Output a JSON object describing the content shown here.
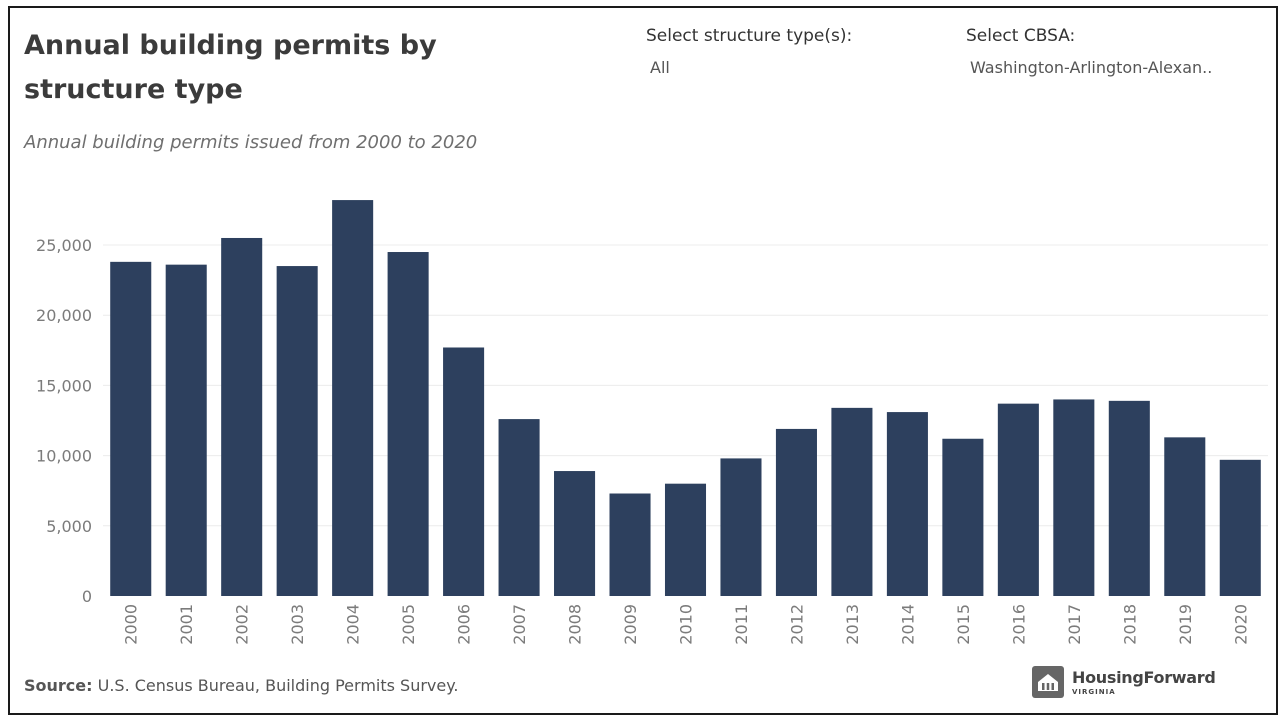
{
  "header": {
    "title": "Annual building permits by structure type",
    "subtitle": "Annual building permits issued from 2000 to 2020"
  },
  "filters": {
    "structure": {
      "label": "Select structure type(s):",
      "value": "All"
    },
    "cbsa": {
      "label": "Select CBSA:",
      "value": "Washington-Arlington-Alexan.."
    }
  },
  "footer": {
    "source_label": "Source:",
    "source_text": " U.S. Census Bureau, Building Permits Survey.",
    "logo_name": "HousingForward",
    "logo_sub": "VIRGINIA"
  },
  "colors": {
    "bar": "#2d405e",
    "grid": "#ececec"
  },
  "chart_data": {
    "type": "bar",
    "title": "Annual building permits by structure type",
    "subtitle": "Annual building permits issued from 2000 to 2020",
    "xlabel": "",
    "ylabel": "",
    "categories": [
      "2000",
      "2001",
      "2002",
      "2003",
      "2004",
      "2005",
      "2006",
      "2007",
      "2008",
      "2009",
      "2010",
      "2011",
      "2012",
      "2013",
      "2014",
      "2015",
      "2016",
      "2017",
      "2018",
      "2019",
      "2020"
    ],
    "values": [
      23800,
      23600,
      25500,
      23500,
      28200,
      24500,
      17700,
      12600,
      8900,
      7300,
      8000,
      9800,
      11900,
      13400,
      13100,
      11200,
      13700,
      14000,
      13900,
      11300,
      9700
    ],
    "ylim": [
      0,
      28500
    ],
    "yticks": [
      0,
      5000,
      10000,
      15000,
      20000,
      25000
    ],
    "ytick_labels": [
      "0",
      "5,000",
      "10,000",
      "15,000",
      "20,000",
      "25,000"
    ],
    "grid": true,
    "legend": "none"
  }
}
